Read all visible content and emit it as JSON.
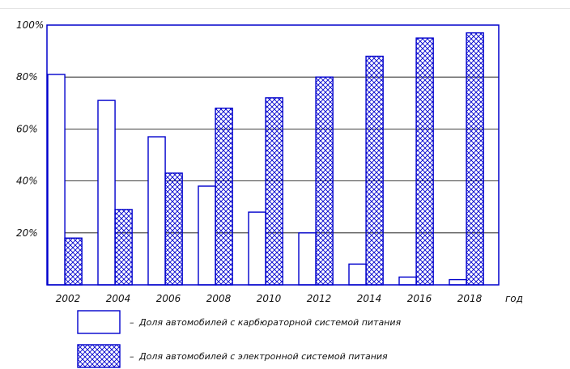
{
  "chart_data": {
    "type": "bar",
    "categories": [
      "2002",
      "2004",
      "2006",
      "2008",
      "2010",
      "2012",
      "2014",
      "2016",
      "2018"
    ],
    "series": [
      {
        "name": "Доля автомобилей с карбюраторной системой питания",
        "values": [
          81,
          71,
          57,
          38,
          28,
          20,
          8,
          3,
          2
        ],
        "fill": "none"
      },
      {
        "name": "Доля автомобилей с электронной системой питания",
        "values": [
          18,
          29,
          43,
          68,
          72,
          80,
          88,
          95,
          97
        ],
        "fill": "crosshatch"
      }
    ],
    "yticks": [
      "20%",
      "40%",
      "60%",
      "80%",
      "100%"
    ],
    "xunit": "год",
    "ylim": [
      0,
      100
    ],
    "grid": true,
    "legend_position": "bottom",
    "colors": {
      "bar_stroke": "#0000cc",
      "grid": "#000000",
      "hatch": "#0000cc"
    }
  }
}
